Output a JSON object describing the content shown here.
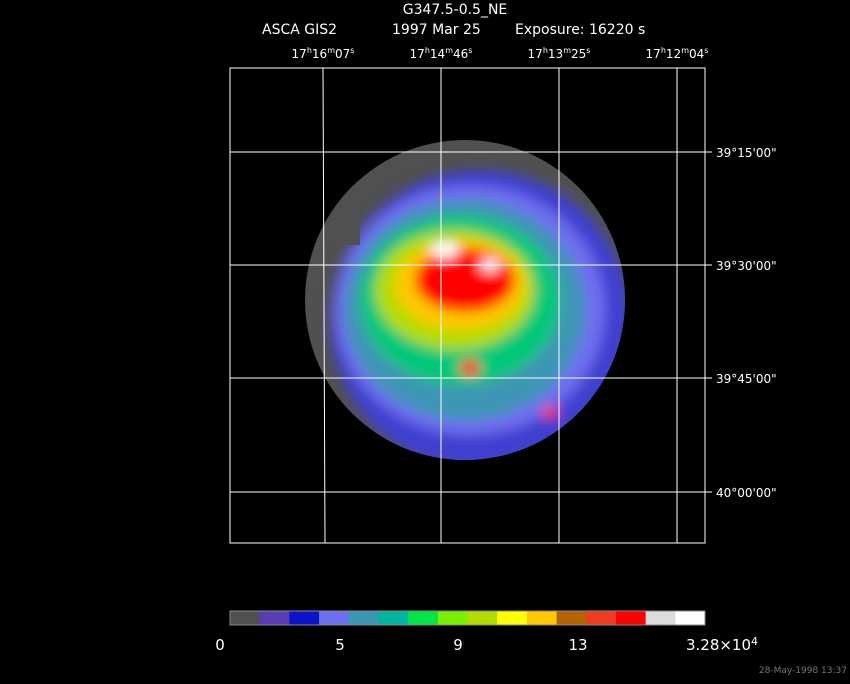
{
  "header": {
    "title": "G347.5-0.5_NE",
    "instrument": "ASCA GIS2",
    "date": "1997 Mar 25",
    "exposure": "Exposure: 16220 s"
  },
  "ra_ticks": [
    [
      "17",
      "h",
      "16",
      "m",
      "07",
      "s"
    ],
    [
      "17",
      "h",
      "14",
      "m",
      "46",
      "s"
    ],
    [
      "17",
      "h",
      "13",
      "m",
      "25",
      "s"
    ],
    [
      "17",
      "h",
      "12",
      "m",
      "04",
      "s"
    ]
  ],
  "dec_ticks": [
    "39°15'00\"",
    "39°30'00\"",
    "39°45'00\"",
    "40°00'00\""
  ],
  "colorbar": {
    "colors": [
      "#505050",
      "#5a3cb4",
      "#0a14c8",
      "#6e6ef0",
      "#3c96b4",
      "#00b4a0",
      "#00e646",
      "#78f000",
      "#b4dc00",
      "#ffff00",
      "#ffc800",
      "#b46400",
      "#f03c1e",
      "#ff0000",
      "#dcdcdc",
      "#ffffff"
    ],
    "labels": [
      [
        "0"
      ],
      [
        "5"
      ],
      [
        "9"
      ],
      [
        "13"
      ],
      [
        "3.28×10",
        "4"
      ]
    ]
  },
  "footer": "28-May-1998 13:37"
}
